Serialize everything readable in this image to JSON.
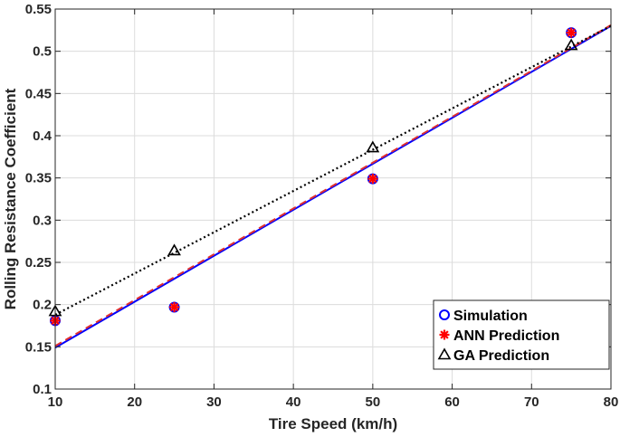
{
  "chart_data": {
    "type": "line",
    "title": "",
    "xlabel": "Tire Speed (km/h)",
    "ylabel": "Rolling Resistance Coefficient",
    "xlim": [
      10,
      80
    ],
    "ylim": [
      0.1,
      0.55
    ],
    "xticks": [
      10,
      20,
      30,
      40,
      50,
      60,
      70,
      80
    ],
    "yticks": [
      0.1,
      0.15,
      0.2,
      0.25,
      0.3,
      0.35,
      0.4,
      0.45,
      0.5,
      0.55
    ],
    "grid": true,
    "legend_position": "bottom-right",
    "series": [
      {
        "name": "Simulation",
        "marker": "circle",
        "color": "#0000ff",
        "points": [
          [
            10,
            0.181
          ],
          [
            25,
            0.197
          ],
          [
            50,
            0.349
          ],
          [
            75,
            0.522
          ]
        ],
        "fit_line": {
          "from": [
            10,
            0.149
          ],
          "to": [
            80,
            0.53
          ],
          "style": "solid",
          "color": "#0000ff"
        }
      },
      {
        "name": "ANN Prediction",
        "marker": "star",
        "color": "#ff0000",
        "points": [
          [
            10,
            0.181
          ],
          [
            25,
            0.197
          ],
          [
            50,
            0.349
          ],
          [
            75,
            0.522
          ]
        ],
        "fit_line": {
          "from": [
            10,
            0.151
          ],
          "to": [
            80,
            0.531
          ],
          "style": "dashed",
          "color": "#e03030"
        }
      },
      {
        "name": "GA Prediction",
        "marker": "triangle",
        "color": "#000000",
        "points": [
          [
            10,
            0.192
          ],
          [
            25,
            0.264
          ],
          [
            50,
            0.386
          ],
          [
            75,
            0.507
          ]
        ],
        "fit_line": {
          "from": [
            10,
            0.188
          ],
          "to": [
            80,
            0.53
          ],
          "style": "dotted",
          "color": "#000000"
        }
      }
    ]
  }
}
